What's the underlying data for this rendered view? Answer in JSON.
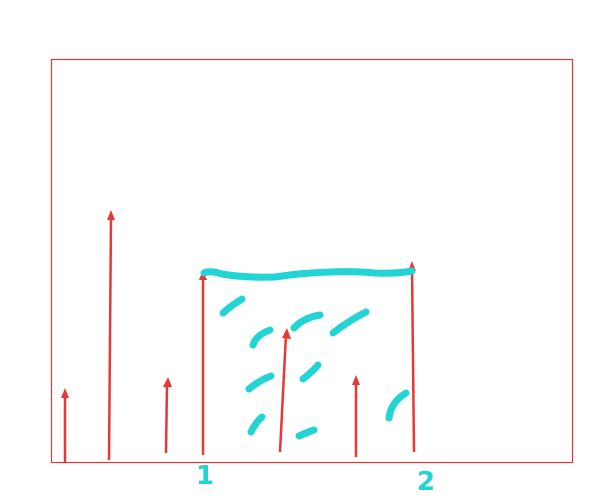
{
  "labels": [
    "1",
    "2"
  ]
}
